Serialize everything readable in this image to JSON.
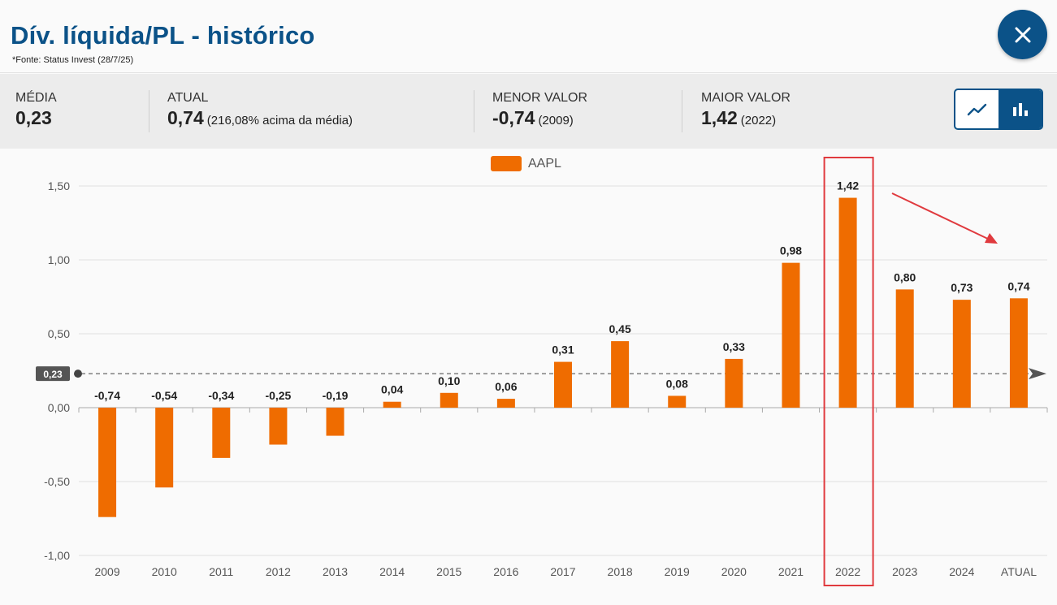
{
  "header": {
    "title": "Dív. líquida/PL - histórico",
    "source": "*Fonte: Status Invest (28/7/25)",
    "close_icon": "close-icon"
  },
  "stats": {
    "media": {
      "label": "MÉDIA",
      "value": "0,23"
    },
    "atual": {
      "label": "ATUAL",
      "value": "0,74",
      "note": "(216,08% acima da média)"
    },
    "menor": {
      "label": "MENOR VALOR",
      "value": "-0,74",
      "note": "(2009)"
    },
    "maior": {
      "label": "MAIOR VALOR",
      "value": "1,42",
      "note": "(2022)"
    }
  },
  "view_toggle": {
    "options": [
      {
        "icon": "line-chart-icon",
        "active": false
      },
      {
        "icon": "bar-chart-icon",
        "active": true
      }
    ],
    "active_color": "#0b5288"
  },
  "chart_data": {
    "type": "bar",
    "categories": [
      "2009",
      "2010",
      "2011",
      "2012",
      "2013",
      "2014",
      "2015",
      "2016",
      "2017",
      "2018",
      "2019",
      "2020",
      "2021",
      "2022",
      "2023",
      "2024",
      "ATUAL"
    ],
    "series": [
      {
        "name": "AAPL",
        "color": "#ef6c00",
        "values": [
          -0.74,
          -0.54,
          -0.34,
          -0.25,
          -0.19,
          0.04,
          0.1,
          0.06,
          0.31,
          0.45,
          0.08,
          0.33,
          0.98,
          1.42,
          0.8,
          0.73,
          0.74
        ],
        "labels": [
          "-0,74",
          "-0,54",
          "-0,34",
          "-0,25",
          "-0,19",
          "0,04",
          "0,10",
          "0,06",
          "0,31",
          "0,45",
          "0,08",
          "0,33",
          "0,98",
          "1,42",
          "0,80",
          "0,73",
          "0,74"
        ]
      }
    ],
    "ylim": [
      -1.0,
      1.5
    ],
    "yticks": [
      1.5,
      1.0,
      0.5,
      0.0,
      -0.5,
      -1.0
    ],
    "ytick_labels": [
      "1,50",
      "1,00",
      "0,50",
      "0,00",
      "-0,50",
      "-1,00"
    ],
    "average": {
      "value": 0.23,
      "label": "0,23"
    },
    "highlight_category": "2022",
    "highlight_color": "#e03a3e",
    "grid": true,
    "legend": "top-center"
  }
}
